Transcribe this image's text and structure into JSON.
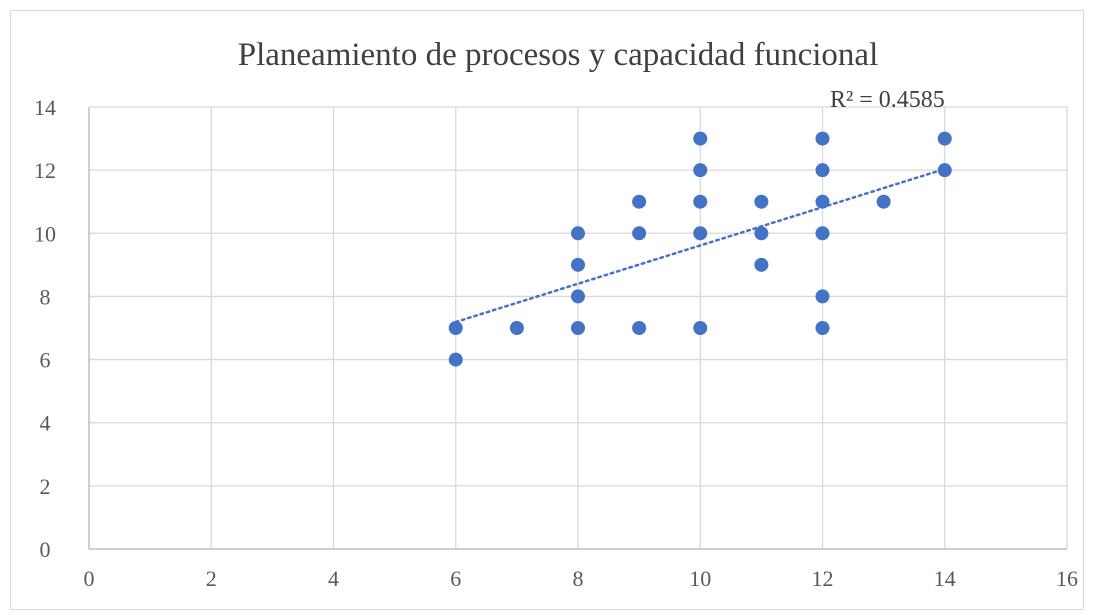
{
  "chart_data": {
    "type": "scatter",
    "title": "Planeamiento de procesos y capacidad funcional",
    "xlabel": "",
    "ylabel": "",
    "xlim": [
      0,
      16
    ],
    "ylim": [
      0,
      14
    ],
    "x_ticks": [
      0,
      2,
      4,
      6,
      8,
      10,
      12,
      14,
      16
    ],
    "y_ticks": [
      0,
      2,
      4,
      6,
      8,
      10,
      12,
      14
    ],
    "grid": true,
    "point_color": "#4472C4",
    "trendline": {
      "type": "linear",
      "style": "dotted",
      "r_squared_label": "R² = 0.4585",
      "x_range": [
        6,
        14
      ]
    },
    "points": [
      {
        "x": 6,
        "y": 7
      },
      {
        "x": 6,
        "y": 6
      },
      {
        "x": 7,
        "y": 7
      },
      {
        "x": 8,
        "y": 10
      },
      {
        "x": 8,
        "y": 9
      },
      {
        "x": 8,
        "y": 8
      },
      {
        "x": 8,
        "y": 7
      },
      {
        "x": 9,
        "y": 11
      },
      {
        "x": 9,
        "y": 10
      },
      {
        "x": 9,
        "y": 7
      },
      {
        "x": 10,
        "y": 13
      },
      {
        "x": 10,
        "y": 12
      },
      {
        "x": 10,
        "y": 11
      },
      {
        "x": 10,
        "y": 10
      },
      {
        "x": 10,
        "y": 7
      },
      {
        "x": 11,
        "y": 11
      },
      {
        "x": 11,
        "y": 10
      },
      {
        "x": 11,
        "y": 9
      },
      {
        "x": 12,
        "y": 13
      },
      {
        "x": 12,
        "y": 12
      },
      {
        "x": 12,
        "y": 11
      },
      {
        "x": 12,
        "y": 10
      },
      {
        "x": 12,
        "y": 8
      },
      {
        "x": 12,
        "y": 7
      },
      {
        "x": 13,
        "y": 11
      },
      {
        "x": 14,
        "y": 13
      },
      {
        "x": 14,
        "y": 12
      }
    ]
  }
}
